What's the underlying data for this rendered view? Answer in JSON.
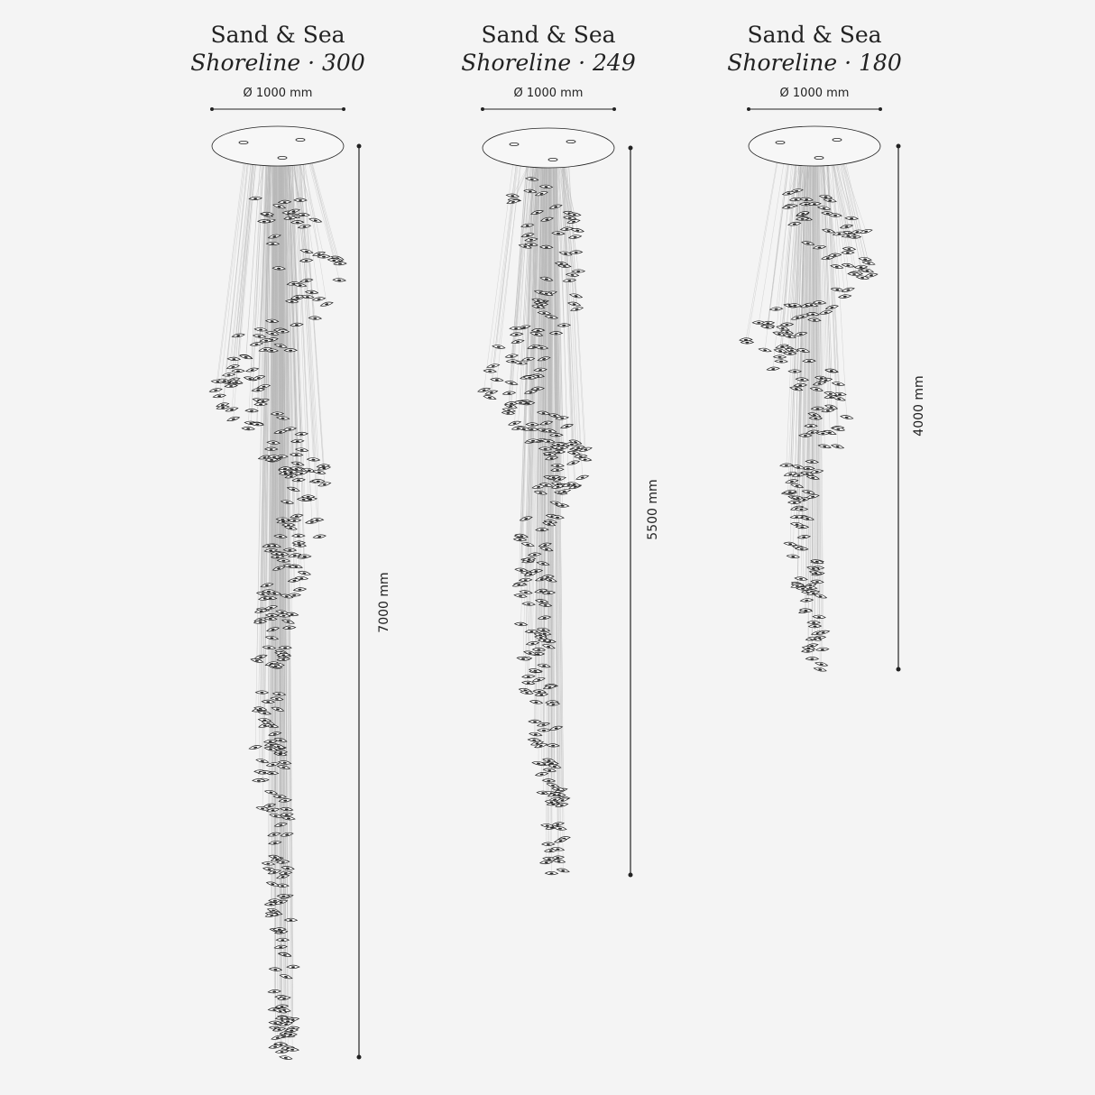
{
  "products": [
    {
      "title": "Sand & Sea",
      "model": "Shoreline · 300",
      "diameter_label": "Ø 1000 mm",
      "height_label": "7000 mm",
      "pendant_count": 300
    },
    {
      "title": "Sand & Sea",
      "model": "Shoreline · 249",
      "diameter_label": "Ø 1000 mm",
      "height_label": "5500 mm",
      "pendant_count": 249
    },
    {
      "title": "Sand & Sea",
      "model": "Shoreline · 180",
      "diameter_label": "Ø 1000 mm",
      "height_label": "4000 mm",
      "pendant_count": 180
    }
  ],
  "colors": {
    "background": "#f4f4f4",
    "ink": "#222222",
    "wire": "#b8b8b8",
    "canopy_fill": "#f7f7f7"
  }
}
